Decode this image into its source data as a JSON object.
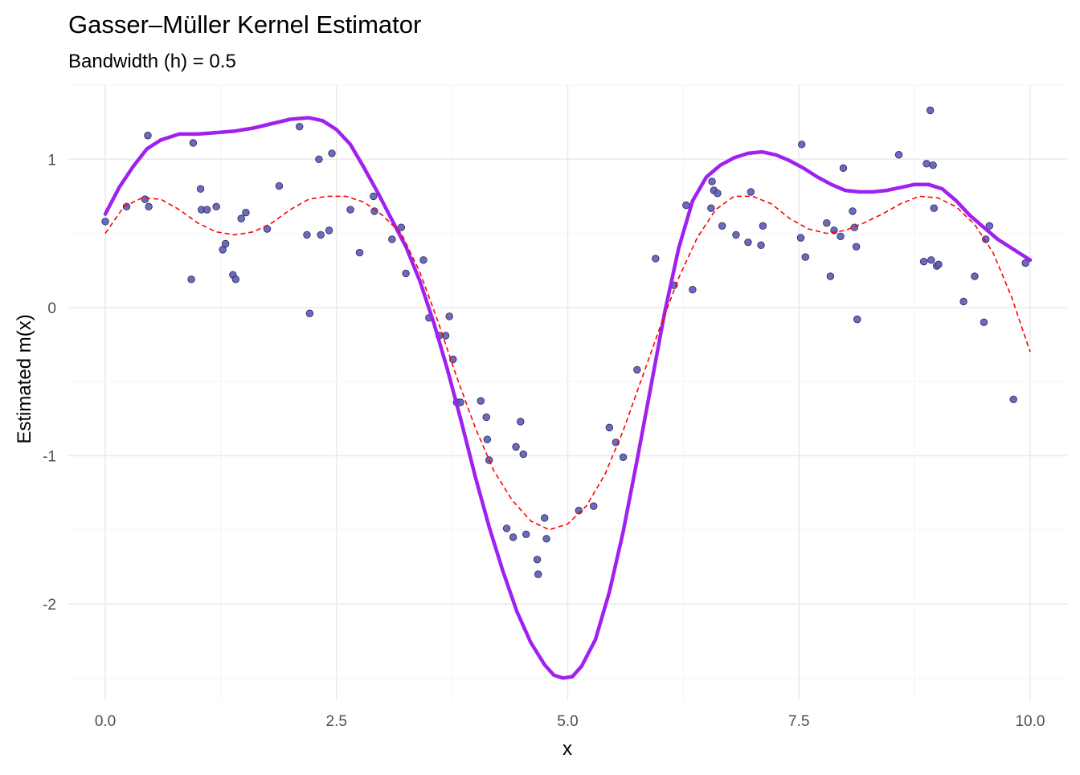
{
  "chart_data": {
    "type": "scatter",
    "title": "Gasser–Müller Kernel Estimator",
    "subtitle": "Bandwidth (h) = 0.5",
    "xlabel": "x",
    "ylabel": "Estimated m(x)",
    "xlim": [
      -0.4,
      10.4
    ],
    "ylim": [
      -2.65,
      1.5
    ],
    "x_ticks": [
      0,
      2.5,
      5,
      7.5,
      10
    ],
    "x_tick_labels": [
      "0.0",
      "2.5",
      "5.0",
      "7.5",
      "10.0"
    ],
    "y_ticks": [
      -2,
      -1,
      0,
      1
    ],
    "y_tick_labels": [
      "-2",
      "-1",
      "0",
      "1"
    ],
    "grid": true,
    "legend": "none",
    "colors": {
      "points_fill": "#5b5bb5",
      "points_stroke": "#26265a",
      "estimate_line": "#a020f0",
      "true_curve": "#ff0000"
    },
    "series": [
      {
        "kind": "points",
        "x": [
          0.0,
          0.23,
          0.43,
          0.46,
          0.47,
          0.93,
          0.95,
          1.03,
          1.04,
          1.1,
          1.2,
          1.27,
          1.3,
          1.38,
          1.41,
          1.47,
          1.52,
          1.75,
          1.88,
          2.1,
          2.18,
          2.21,
          2.31,
          2.33,
          2.42,
          2.45,
          2.65,
          2.75,
          2.9,
          2.91,
          3.1,
          3.2,
          3.25,
          3.44,
          3.5,
          3.61,
          3.68,
          3.72,
          3.76,
          3.8,
          3.84,
          4.06,
          4.12,
          4.13,
          4.15,
          4.34,
          4.41,
          4.44,
          4.49,
          4.52,
          4.55,
          4.67,
          4.68,
          4.75,
          4.77,
          5.12,
          5.28,
          5.45,
          5.52,
          5.6,
          5.75,
          5.95,
          6.15,
          6.28,
          6.35,
          6.55,
          6.56,
          6.58,
          6.62,
          6.67,
          6.82,
          6.95,
          6.98,
          7.09,
          7.11,
          7.52,
          7.53,
          7.57,
          7.8,
          7.84,
          7.88,
          7.95,
          7.98,
          8.08,
          8.1,
          8.12,
          8.13,
          8.58,
          8.85,
          8.88,
          8.92,
          8.93,
          8.95,
          8.96,
          8.99,
          9.01,
          9.28,
          9.4,
          9.5,
          9.52,
          9.56,
          9.82,
          9.95
        ],
        "y": [
          0.58,
          0.68,
          0.73,
          1.16,
          0.68,
          0.19,
          1.11,
          0.8,
          0.66,
          0.66,
          0.68,
          0.39,
          0.43,
          0.22,
          0.19,
          0.6,
          0.64,
          0.53,
          0.82,
          1.22,
          0.49,
          -0.04,
          1.0,
          0.49,
          0.52,
          1.04,
          0.66,
          0.37,
          0.75,
          0.65,
          0.46,
          0.54,
          0.23,
          0.32,
          -0.07,
          -0.19,
          -0.19,
          -0.06,
          -0.35,
          -0.64,
          -0.64,
          -0.63,
          -0.74,
          -0.89,
          -1.03,
          -1.49,
          -1.55,
          -0.94,
          -0.77,
          -0.99,
          -1.53,
          -1.7,
          -1.8,
          -1.42,
          -1.56,
          -1.37,
          -1.34,
          -0.81,
          -0.91,
          -1.01,
          -0.42,
          0.33,
          0.15,
          0.69,
          0.12,
          0.67,
          0.85,
          0.79,
          0.77,
          0.55,
          0.49,
          0.44,
          0.78,
          0.42,
          0.55,
          0.47,
          1.1,
          0.34,
          0.57,
          0.21,
          0.52,
          0.48,
          0.94,
          0.65,
          0.54,
          0.41,
          -0.08,
          1.03,
          0.31,
          0.97,
          1.33,
          0.32,
          0.96,
          0.67,
          0.28,
          0.29,
          0.04,
          0.21,
          -0.1,
          0.46,
          0.55,
          -0.62,
          0.3
        ]
      },
      {
        "kind": "line",
        "style": "solid",
        "x": [
          0.0,
          0.15,
          0.3,
          0.45,
          0.6,
          0.8,
          1.0,
          1.2,
          1.4,
          1.6,
          1.8,
          2.0,
          2.2,
          2.35,
          2.5,
          2.65,
          2.8,
          2.95,
          3.1,
          3.25,
          3.4,
          3.55,
          3.7,
          3.85,
          4.0,
          4.15,
          4.3,
          4.45,
          4.6,
          4.75,
          4.85,
          4.95,
          5.05,
          5.15,
          5.3,
          5.45,
          5.6,
          5.75,
          5.9,
          6.05,
          6.2,
          6.35,
          6.5,
          6.65,
          6.8,
          6.95,
          7.1,
          7.25,
          7.4,
          7.55,
          7.7,
          7.85,
          8.0,
          8.15,
          8.3,
          8.45,
          8.6,
          8.75,
          8.9,
          9.05,
          9.2,
          9.35,
          9.5,
          9.65,
          9.8,
          10.0
        ],
        "y": [
          0.63,
          0.81,
          0.95,
          1.07,
          1.13,
          1.17,
          1.17,
          1.18,
          1.19,
          1.21,
          1.24,
          1.27,
          1.28,
          1.26,
          1.2,
          1.1,
          0.94,
          0.77,
          0.59,
          0.41,
          0.18,
          -0.1,
          -0.42,
          -0.77,
          -1.14,
          -1.48,
          -1.78,
          -2.05,
          -2.26,
          -2.41,
          -2.48,
          -2.5,
          -2.49,
          -2.42,
          -2.24,
          -1.92,
          -1.51,
          -1.03,
          -0.53,
          -0.03,
          0.4,
          0.72,
          0.88,
          0.96,
          1.01,
          1.04,
          1.05,
          1.03,
          0.99,
          0.94,
          0.88,
          0.83,
          0.79,
          0.78,
          0.78,
          0.79,
          0.81,
          0.83,
          0.83,
          0.8,
          0.72,
          0.62,
          0.54,
          0.46,
          0.4,
          0.32
        ]
      },
      {
        "kind": "line",
        "style": "dashed",
        "x": [
          0.0,
          0.2,
          0.4,
          0.6,
          0.8,
          1.0,
          1.2,
          1.4,
          1.6,
          1.8,
          2.0,
          2.2,
          2.4,
          2.6,
          2.8,
          3.0,
          3.2,
          3.4,
          3.6,
          3.8,
          4.0,
          4.2,
          4.4,
          4.6,
          4.8,
          5.0,
          5.2,
          5.4,
          5.6,
          5.8,
          6.0,
          6.2,
          6.4,
          6.6,
          6.8,
          7.0,
          7.2,
          7.4,
          7.6,
          7.8,
          8.0,
          8.2,
          8.4,
          8.6,
          8.8,
          9.0,
          9.2,
          9.4,
          9.6,
          9.8,
          10.0
        ],
        "y": [
          0.5,
          0.68,
          0.74,
          0.73,
          0.66,
          0.57,
          0.51,
          0.49,
          0.51,
          0.57,
          0.66,
          0.73,
          0.75,
          0.75,
          0.71,
          0.62,
          0.5,
          0.24,
          -0.1,
          -0.47,
          -0.81,
          -1.1,
          -1.3,
          -1.44,
          -1.5,
          -1.46,
          -1.34,
          -1.13,
          -0.83,
          -0.48,
          -0.13,
          0.2,
          0.47,
          0.66,
          0.75,
          0.75,
          0.7,
          0.6,
          0.53,
          0.5,
          0.52,
          0.57,
          0.63,
          0.7,
          0.75,
          0.74,
          0.68,
          0.56,
          0.37,
          0.07,
          -0.3
        ]
      }
    ]
  }
}
